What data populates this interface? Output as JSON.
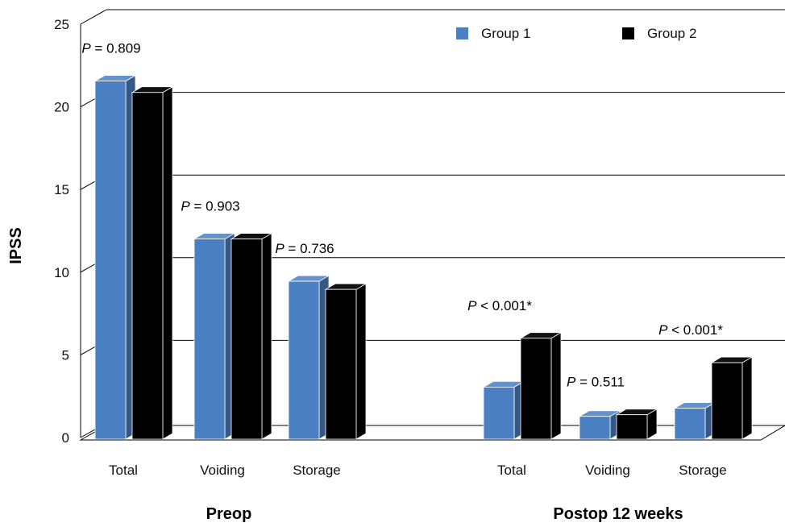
{
  "chart_data": {
    "type": "bar",
    "ylabel": "IPSS",
    "ylim": [
      0,
      25
    ],
    "yticks": [
      0,
      5,
      10,
      15,
      20,
      25
    ],
    "grid": true,
    "legend_position": "top-right",
    "groups": [
      {
        "label": "Preop",
        "categories": [
          "Total",
          "Voiding",
          "Storage"
        ],
        "series": [
          {
            "name": "Group 1",
            "color": "#4a7fc1",
            "values": [
              22.0,
              12.3,
              9.7
            ]
          },
          {
            "name": "Group 2",
            "color": "#000000",
            "values": [
              21.3,
              12.3,
              9.2
            ]
          }
        ],
        "p_values": [
          "= 0.809",
          "= 0.903",
          "= 0.736"
        ]
      },
      {
        "label": "Postop 12 weeks",
        "categories": [
          "Total",
          "Voiding",
          "Storage"
        ],
        "series": [
          {
            "name": "Group 1",
            "color": "#4a7fc1",
            "values": [
              3.2,
              1.4,
              1.9
            ]
          },
          {
            "name": "Group 2",
            "color": "#000000",
            "values": [
              6.2,
              1.5,
              4.7
            ]
          }
        ],
        "p_values": [
          "< 0.001*",
          "= 0.511",
          "< 0.001*"
        ]
      }
    ],
    "p_label": "P"
  }
}
